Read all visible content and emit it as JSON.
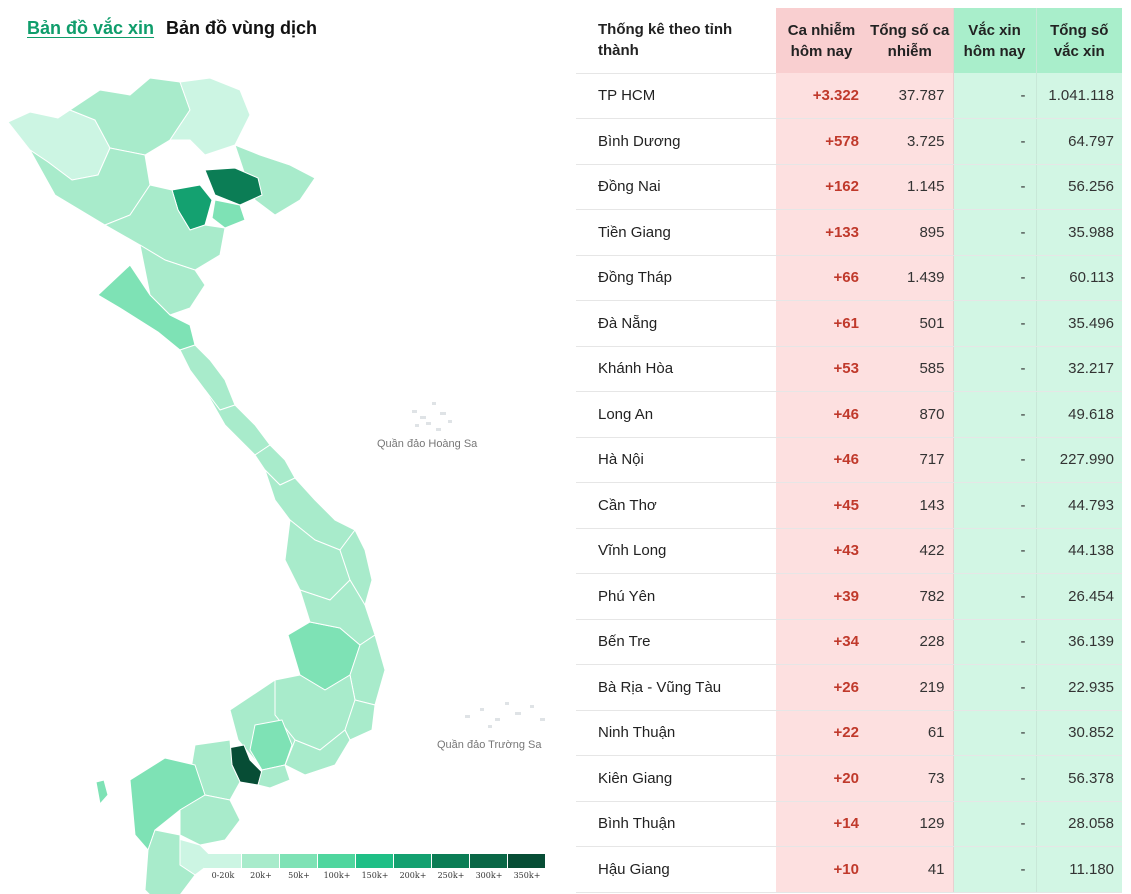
{
  "tabs": {
    "vaccine_map": "Bản đồ vắc xin",
    "epidemic_map": "Bản đồ vùng dịch"
  },
  "map": {
    "islands": {
      "hoang_sa": "Quần đảo Hoàng Sa",
      "truong_sa": "Quần đảo Trường Sa"
    },
    "legend": [
      {
        "label": "0-20k",
        "color": "#ccf5e3"
      },
      {
        "label": "20k+",
        "color": "#a8ebcb"
      },
      {
        "label": "50k+",
        "color": "#7ee2b5"
      },
      {
        "label": "100k+",
        "color": "#4fd69e"
      },
      {
        "label": "150k+",
        "color": "#1fbf86"
      },
      {
        "label": "200k+",
        "color": "#14a170"
      },
      {
        "label": "250k+",
        "color": "#0b7d55"
      },
      {
        "label": "300k+",
        "color": "#0a6746"
      },
      {
        "label": "350k+",
        "color": "#074d35"
      }
    ]
  },
  "table": {
    "headers": {
      "province": "Thống kê theo tỉnh thành",
      "cases_today": "Ca nhiễm hôm nay",
      "cases_total": "Tổng số ca nhiễm",
      "vaccine_today": "Vắc xin hôm nay",
      "vaccine_total": "Tổng số vắc xin"
    },
    "rows": [
      {
        "name": "TP HCM",
        "today": "+3.322",
        "total": "37.787",
        "vac_today": "-",
        "vac_total": "1.041.118"
      },
      {
        "name": "Bình Dương",
        "today": "+578",
        "total": "3.725",
        "vac_today": "-",
        "vac_total": "64.797"
      },
      {
        "name": "Đồng Nai",
        "today": "+162",
        "total": "1.145",
        "vac_today": "-",
        "vac_total": "56.256"
      },
      {
        "name": "Tiền Giang",
        "today": "+133",
        "total": "895",
        "vac_today": "-",
        "vac_total": "35.988"
      },
      {
        "name": "Đồng Tháp",
        "today": "+66",
        "total": "1.439",
        "vac_today": "-",
        "vac_total": "60.113"
      },
      {
        "name": "Đà Nẵng",
        "today": "+61",
        "total": "501",
        "vac_today": "-",
        "vac_total": "35.496"
      },
      {
        "name": "Khánh Hòa",
        "today": "+53",
        "total": "585",
        "vac_today": "-",
        "vac_total": "32.217"
      },
      {
        "name": "Long An",
        "today": "+46",
        "total": "870",
        "vac_today": "-",
        "vac_total": "49.618"
      },
      {
        "name": "Hà Nội",
        "today": "+46",
        "total": "717",
        "vac_today": "-",
        "vac_total": "227.990"
      },
      {
        "name": "Cần Thơ",
        "today": "+45",
        "total": "143",
        "vac_today": "-",
        "vac_total": "44.793"
      },
      {
        "name": "Vĩnh Long",
        "today": "+43",
        "total": "422",
        "vac_today": "-",
        "vac_total": "44.138"
      },
      {
        "name": "Phú Yên",
        "today": "+39",
        "total": "782",
        "vac_today": "-",
        "vac_total": "26.454"
      },
      {
        "name": "Bến Tre",
        "today": "+34",
        "total": "228",
        "vac_today": "-",
        "vac_total": "36.139"
      },
      {
        "name": "Bà Rịa - Vũng Tàu",
        "today": "+26",
        "total": "219",
        "vac_today": "-",
        "vac_total": "22.935"
      },
      {
        "name": "Ninh Thuận",
        "today": "+22",
        "total": "61",
        "vac_today": "-",
        "vac_total": "30.852"
      },
      {
        "name": "Kiên Giang",
        "today": "+20",
        "total": "73",
        "vac_today": "-",
        "vac_total": "56.378"
      },
      {
        "name": "Bình Thuận",
        "today": "+14",
        "total": "129",
        "vac_today": "-",
        "vac_total": "28.058"
      },
      {
        "name": "Hậu Giang",
        "today": "+10",
        "total": "41",
        "vac_today": "-",
        "vac_total": "11.180"
      }
    ]
  }
}
